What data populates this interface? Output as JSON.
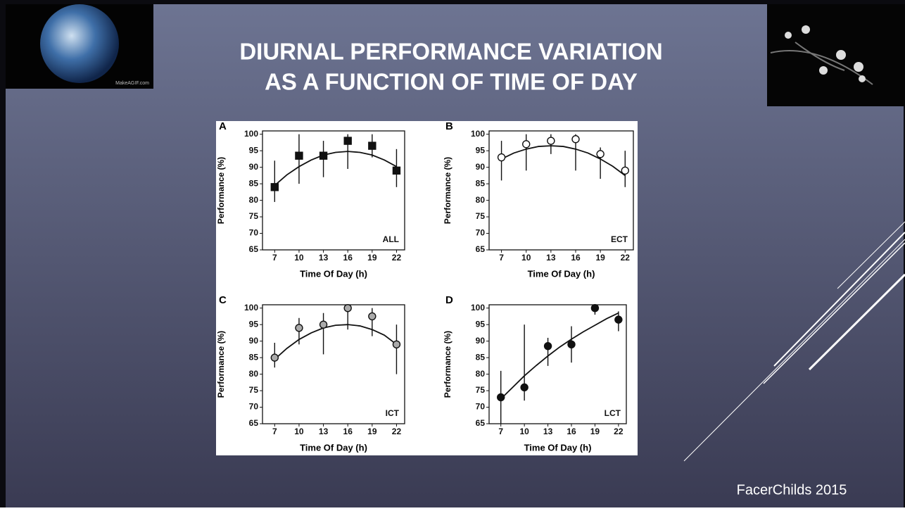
{
  "slide": {
    "title": [
      "DIURNAL PERFORMANCE VARIATION",
      "AS A FUNCTION OF TIME OF DAY"
    ],
    "footer": "FacerChilds 2015",
    "image_caption": "MakeAGIF.com"
  },
  "chart_data": [
    {
      "type": "scatter",
      "panel": "A",
      "tag": "ALL",
      "xlabel": "Time Of Day (h)",
      "ylabel": "Performance (%)",
      "x": [
        7,
        10,
        13,
        16,
        19,
        22
      ],
      "xlim": [
        5.5,
        23
      ],
      "ylim": [
        65,
        101
      ],
      "xticks": [
        7,
        10,
        13,
        16,
        19,
        22
      ],
      "yticks": [
        65,
        70,
        75,
        80,
        85,
        90,
        95,
        100
      ],
      "marker": "square",
      "color": "#111111",
      "fill": "#111111",
      "series": [
        {
          "values": [
            84,
            93.5,
            93.5,
            98,
            96.5,
            89
          ],
          "lower": [
            79.5,
            85,
            87,
            89.5,
            93,
            84
          ],
          "upper": [
            92,
            100,
            98,
            100,
            100,
            95.5
          ]
        }
      ],
      "fit": {
        "x": [
          7,
          8.5,
          10,
          11.5,
          13,
          14.5,
          16,
          17.5,
          19,
          20.5,
          22
        ],
        "values": [
          84.5,
          87.7,
          90.2,
          92.2,
          93.7,
          94.5,
          94.8,
          94.5,
          93.7,
          92.2,
          90.2
        ]
      }
    },
    {
      "type": "scatter",
      "panel": "B",
      "tag": "ECT",
      "xlabel": "Time Of Day (h)",
      "ylabel": "Performance (%)",
      "x": [
        7,
        10,
        13,
        16,
        19,
        22
      ],
      "xlim": [
        5.5,
        23
      ],
      "ylim": [
        65,
        101
      ],
      "xticks": [
        7,
        10,
        13,
        16,
        19,
        22
      ],
      "yticks": [
        65,
        70,
        75,
        80,
        85,
        90,
        95,
        100
      ],
      "marker": "circle",
      "color": "#111111",
      "fill": "#ffffff",
      "series": [
        {
          "values": [
            93,
            97,
            98,
            98.5,
            94,
            89
          ],
          "lower": [
            86,
            89,
            94,
            89,
            86.5,
            84
          ],
          "upper": [
            98,
            100,
            100,
            100,
            96,
            95
          ]
        }
      ],
      "fit": {
        "x": [
          7,
          8.5,
          10,
          11.5,
          13,
          14.5,
          16,
          17.5,
          19,
          20.5,
          22
        ],
        "values": [
          92.5,
          94.3,
          95.5,
          96.3,
          96.5,
          96.3,
          95.5,
          94.3,
          92.5,
          90.3,
          87.5
        ]
      }
    },
    {
      "type": "scatter",
      "panel": "C",
      "tag": "ICT",
      "xlabel": "Time Of Day (h)",
      "ylabel": "Performance (%)",
      "x": [
        7,
        10,
        13,
        16,
        19,
        22
      ],
      "xlim": [
        5.5,
        23
      ],
      "ylim": [
        65,
        101
      ],
      "xticks": [
        7,
        10,
        13,
        16,
        19,
        22
      ],
      "yticks": [
        65,
        70,
        75,
        80,
        85,
        90,
        95,
        100
      ],
      "marker": "circle",
      "color": "#111111",
      "fill": "#aaaaaa",
      "series": [
        {
          "values": [
            85,
            94,
            95,
            100,
            97.5,
            89
          ],
          "lower": [
            82,
            89,
            86,
            93.5,
            91.5,
            80
          ],
          "upper": [
            89.5,
            97,
            98.5,
            100,
            100,
            95
          ]
        }
      ],
      "fit": {
        "x": [
          7,
          8.5,
          10,
          11.5,
          13,
          14.5,
          16,
          17.5,
          19,
          20.5,
          22
        ],
        "values": [
          84.5,
          87.8,
          90.5,
          92.5,
          94,
          94.8,
          95,
          94.6,
          93.5,
          91.8,
          89
        ]
      }
    },
    {
      "type": "scatter",
      "panel": "D",
      "tag": "LCT",
      "xlabel": "Time Of Day (h)",
      "ylabel": "Performance (%)",
      "x": [
        7,
        10,
        13,
        16,
        19,
        22
      ],
      "xlim": [
        5.5,
        23
      ],
      "ylim": [
        65,
        101
      ],
      "xticks": [
        7,
        10,
        13,
        16,
        19,
        22
      ],
      "yticks": [
        65,
        70,
        75,
        80,
        85,
        90,
        95,
        100
      ],
      "marker": "circle",
      "color": "#111111",
      "fill": "#111111",
      "series": [
        {
          "values": [
            73,
            76,
            88.5,
            89,
            100,
            96.5
          ],
          "lower": [
            65,
            72,
            82.5,
            83.5,
            98,
            93
          ],
          "upper": [
            81,
            95,
            91,
            94.5,
            100,
            99
          ]
        }
      ],
      "fit": {
        "x": [
          7,
          8.5,
          10,
          11.5,
          13,
          14.5,
          16,
          17.5,
          19,
          20.5,
          22
        ],
        "values": [
          72.5,
          76,
          79.5,
          82.6,
          85.5,
          88.2,
          90.6,
          92.8,
          94.8,
          96.8,
          98.5
        ]
      }
    }
  ]
}
